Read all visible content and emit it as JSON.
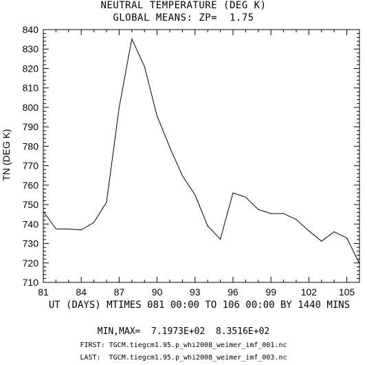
{
  "chart_data": {
    "type": "line",
    "title": "NEUTRAL TEMPERATURE (DEG K)",
    "subtitle": "GLOBAL MEANS: ZP=  1.75",
    "xlabel": "UT (DAYS) MTIMES 081 00:00 TO 106 00:00 BY 1440 MINS",
    "ylabel": "TN (DEG K)",
    "xlim": [
      81,
      106
    ],
    "ylim": [
      710,
      840
    ],
    "xticks": [
      81,
      84,
      87,
      90,
      93,
      96,
      99,
      102,
      105
    ],
    "yticks": [
      710,
      720,
      730,
      740,
      750,
      760,
      770,
      780,
      790,
      800,
      810,
      820,
      830,
      840
    ],
    "x": [
      81,
      82,
      83,
      84,
      85,
      86,
      87,
      88,
      89,
      90,
      91,
      92,
      93,
      94,
      95,
      96,
      97,
      98,
      99,
      100,
      101,
      102,
      103,
      104,
      105,
      106
    ],
    "y": [
      746.5,
      737.5,
      737.4,
      737.0,
      740.8,
      751.2,
      800.0,
      835.2,
      821.0,
      795.5,
      779.5,
      764.8,
      755.0,
      739.0,
      732.2,
      756.0,
      753.8,
      747.5,
      745.4,
      745.4,
      742.3,
      736.5,
      731.2,
      736.0,
      732.8,
      719.7
    ],
    "grid": false
  },
  "footer": {
    "minmax": "MIN,MAX=  7.1973E+02  8.3516E+02",
    "first": "FIRST: TGCM.tiegcm1.95.p_whi2008_weimer_imf_001.nc",
    "last": "LAST:  TGCM.tiegcm1.95.p_whi2008_weimer_imf_003.nc"
  }
}
